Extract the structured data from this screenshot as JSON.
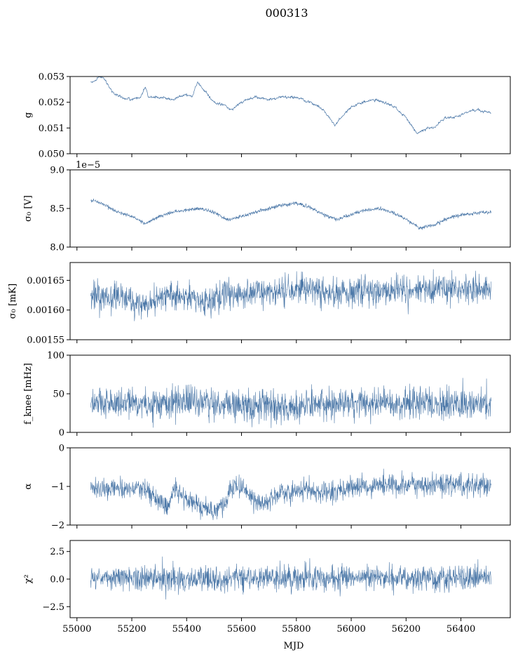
{
  "figure": {
    "title": "000313",
    "xlabel": "MJD"
  },
  "chart_data": {
    "type": "line",
    "x_range": [
      55050,
      56510
    ],
    "xlim": [
      54975,
      56580
    ],
    "x_ticks": [
      55000,
      55200,
      55400,
      55600,
      55800,
      56000,
      56200,
      56400
    ],
    "x_tick_labels": [
      "55000",
      "55200",
      "55400",
      "55600",
      "55800",
      "56000",
      "56200",
      "56400"
    ],
    "line_color": "#4c78a8",
    "panels": [
      {
        "id": "g",
        "ylabel": "g",
        "ylim": [
          0.05,
          0.053
        ],
        "y_ticks": [
          0.05,
          0.051,
          0.052,
          0.053
        ],
        "y_tick_labels": [
          "0.050",
          "0.051",
          "0.052",
          "0.053"
        ],
        "offset_text": "",
        "noise": 2e-05,
        "width": 0.7,
        "trend": [
          [
            55060,
            0.0528
          ],
          [
            55080,
            0.053
          ],
          [
            55100,
            0.0529
          ],
          [
            55130,
            0.0524
          ],
          [
            55160,
            0.0522
          ],
          [
            55200,
            0.0521
          ],
          [
            55230,
            0.0522
          ],
          [
            55250,
            0.0526
          ],
          [
            55260,
            0.0522
          ],
          [
            55300,
            0.0522
          ],
          [
            55350,
            0.0521
          ],
          [
            55400,
            0.0523
          ],
          [
            55420,
            0.0522
          ],
          [
            55440,
            0.0528
          ],
          [
            55460,
            0.0525
          ],
          [
            55500,
            0.052
          ],
          [
            55540,
            0.0519
          ],
          [
            55560,
            0.0517
          ],
          [
            55600,
            0.052
          ],
          [
            55650,
            0.0522
          ],
          [
            55700,
            0.0521
          ],
          [
            55750,
            0.0522
          ],
          [
            55800,
            0.0522
          ],
          [
            55850,
            0.052
          ],
          [
            55900,
            0.0517
          ],
          [
            55940,
            0.0511
          ],
          [
            55970,
            0.0515
          ],
          [
            56000,
            0.0518
          ],
          [
            56040,
            0.052
          ],
          [
            56080,
            0.0521
          ],
          [
            56120,
            0.052
          ],
          [
            56160,
            0.0518
          ],
          [
            56200,
            0.0514
          ],
          [
            56240,
            0.0508
          ],
          [
            56280,
            0.051
          ],
          [
            56300,
            0.051
          ],
          [
            56340,
            0.0514
          ],
          [
            56380,
            0.0514
          ],
          [
            56420,
            0.0516
          ],
          [
            56460,
            0.0517
          ],
          [
            56510,
            0.0516
          ]
        ]
      },
      {
        "id": "sigma0-v",
        "ylabel": "σ₀ [V]",
        "ylim": [
          8e-05,
          9e-05
        ],
        "y_ticks": [
          8e-05,
          8.5e-05,
          9e-05
        ],
        "y_tick_labels": [
          "8.0",
          "8.5",
          "9.0"
        ],
        "offset_text": "1e−5",
        "noise": 1.2e-07,
        "width": 0.6,
        "trend": [
          [
            55060,
            8.6e-05
          ],
          [
            55100,
            8.55e-05
          ],
          [
            55150,
            8.45e-05
          ],
          [
            55200,
            8.4e-05
          ],
          [
            55250,
            8.3e-05
          ],
          [
            55300,
            8.4e-05
          ],
          [
            55350,
            8.45e-05
          ],
          [
            55400,
            8.48e-05
          ],
          [
            55450,
            8.5e-05
          ],
          [
            55500,
            8.45e-05
          ],
          [
            55550,
            8.35e-05
          ],
          [
            55600,
            8.4e-05
          ],
          [
            55650,
            8.45e-05
          ],
          [
            55700,
            8.5e-05
          ],
          [
            55750,
            8.55e-05
          ],
          [
            55800,
            8.57e-05
          ],
          [
            55850,
            8.52e-05
          ],
          [
            55900,
            8.42e-05
          ],
          [
            55950,
            8.36e-05
          ],
          [
            56000,
            8.42e-05
          ],
          [
            56050,
            8.48e-05
          ],
          [
            56100,
            8.5e-05
          ],
          [
            56150,
            8.45e-05
          ],
          [
            56200,
            8.36e-05
          ],
          [
            56250,
            8.25e-05
          ],
          [
            56300,
            8.28e-05
          ],
          [
            56350,
            8.37e-05
          ],
          [
            56400,
            8.42e-05
          ],
          [
            56450,
            8.44e-05
          ],
          [
            56510,
            8.45e-05
          ]
        ]
      },
      {
        "id": "sigma0-mk",
        "ylabel": "σ₀ [mK]",
        "ylim": [
          0.00155,
          0.00168
        ],
        "y_ticks": [
          0.00155,
          0.0016,
          0.00165
        ],
        "y_tick_labels": [
          "0.00155",
          "0.00160",
          "0.00165"
        ],
        "offset_text": "",
        "noise": 1.2e-05,
        "width": 0.6,
        "trend": [
          [
            55060,
            0.00162
          ],
          [
            55150,
            0.00162
          ],
          [
            55200,
            0.001615
          ],
          [
            55250,
            0.001605
          ],
          [
            55300,
            0.00162
          ],
          [
            55350,
            0.001625
          ],
          [
            55400,
            0.001622
          ],
          [
            55450,
            0.001615
          ],
          [
            55500,
            0.00162
          ],
          [
            55550,
            0.001625
          ],
          [
            55600,
            0.001625
          ],
          [
            55650,
            0.00163
          ],
          [
            55700,
            0.001628
          ],
          [
            55750,
            0.001632
          ],
          [
            55800,
            0.001635
          ],
          [
            55850,
            0.001635
          ],
          [
            55900,
            0.00163
          ],
          [
            55950,
            0.001628
          ],
          [
            56000,
            0.001632
          ],
          [
            56050,
            0.001635
          ],
          [
            56100,
            0.00163
          ],
          [
            56150,
            0.001635
          ],
          [
            56200,
            0.001632
          ],
          [
            56250,
            0.001635
          ],
          [
            56300,
            0.001632
          ],
          [
            56350,
            0.00164
          ],
          [
            56400,
            0.001635
          ],
          [
            56450,
            0.001635
          ],
          [
            56510,
            0.001638
          ]
        ]
      },
      {
        "id": "f-knee",
        "ylabel": "f_knee [mHz]",
        "ylim": [
          0,
          100
        ],
        "y_ticks": [
          0,
          50,
          100
        ],
        "y_tick_labels": [
          "0",
          "50",
          "100"
        ],
        "offset_text": "",
        "noise": 10,
        "width": 0.6,
        "trend": [
          [
            55060,
            38
          ],
          [
            55150,
            38
          ],
          [
            55200,
            36
          ],
          [
            55300,
            38
          ],
          [
            55400,
            40
          ],
          [
            55500,
            38
          ],
          [
            55600,
            36
          ],
          [
            55700,
            35
          ],
          [
            55750,
            30
          ],
          [
            55800,
            33
          ],
          [
            55850,
            36
          ],
          [
            55900,
            38
          ],
          [
            56000,
            37
          ],
          [
            56100,
            38
          ],
          [
            56200,
            37
          ],
          [
            56300,
            38
          ],
          [
            56400,
            38
          ],
          [
            56510,
            38
          ]
        ]
      },
      {
        "id": "alpha",
        "ylabel": "α",
        "ylim": [
          -2,
          0
        ],
        "y_ticks": [
          -2,
          -1,
          0
        ],
        "y_tick_labels": [
          "−2",
          "−1",
          "0"
        ],
        "offset_text": "",
        "noise": 0.14,
        "width": 0.6,
        "trend": [
          [
            55060,
            -1.05
          ],
          [
            55150,
            -1.05
          ],
          [
            55200,
            -1.05
          ],
          [
            55250,
            -1.1
          ],
          [
            55300,
            -1.35
          ],
          [
            55330,
            -1.5
          ],
          [
            55360,
            -1.1
          ],
          [
            55400,
            -1.3
          ],
          [
            55450,
            -1.55
          ],
          [
            55500,
            -1.65
          ],
          [
            55540,
            -1.45
          ],
          [
            55560,
            -1.05
          ],
          [
            55600,
            -1.05
          ],
          [
            55630,
            -1.25
          ],
          [
            55670,
            -1.45
          ],
          [
            55700,
            -1.35
          ],
          [
            55750,
            -1.2
          ],
          [
            55800,
            -1.15
          ],
          [
            55850,
            -1.1
          ],
          [
            55900,
            -1.15
          ],
          [
            55950,
            -1.1
          ],
          [
            56000,
            -1.05
          ],
          [
            56100,
            -1.0
          ],
          [
            56200,
            -0.95
          ],
          [
            56300,
            -0.95
          ],
          [
            56400,
            -0.95
          ],
          [
            56510,
            -0.95
          ]
        ]
      },
      {
        "id": "chi2",
        "ylabel": "χ²",
        "ylim": [
          -3.5,
          3.5
        ],
        "y_ticks": [
          -2.5,
          0.0,
          2.5
        ],
        "y_tick_labels": [
          "−2.5",
          "0.0",
          "2.5"
        ],
        "offset_text": "",
        "noise": 0.55,
        "width": 0.6,
        "trend": [
          [
            55060,
            0.1
          ],
          [
            55300,
            0.1
          ],
          [
            55400,
            0.0
          ],
          [
            55500,
            -0.1
          ],
          [
            55600,
            0.1
          ],
          [
            55800,
            0.1
          ],
          [
            56000,
            0.1
          ],
          [
            56510,
            0.1
          ]
        ]
      }
    ]
  }
}
